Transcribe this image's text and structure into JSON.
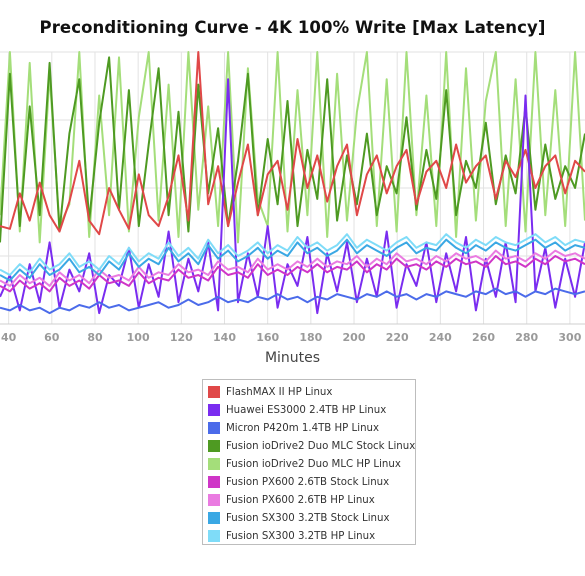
{
  "chart_data": {
    "type": "line",
    "title": "Preconditioning Curve - 4K 100% Write [Max Latency]",
    "xlabel": "Minutes",
    "ylabel": "",
    "xlim": [
      36,
      307
    ],
    "ylim": [
      0,
      1
    ],
    "x_ticks": [
      40,
      60,
      80,
      100,
      120,
      140,
      160,
      180,
      200,
      220,
      240,
      260,
      280,
      300
    ],
    "grid": true,
    "legend_position": "bottom",
    "series": [
      {
        "name": "FlashMAX II HP Linux",
        "color": "#e04848",
        "values": [
          0.36,
          0.35,
          0.48,
          0.38,
          0.52,
          0.4,
          0.34,
          0.45,
          0.6,
          0.38,
          0.33,
          0.5,
          0.42,
          0.35,
          0.55,
          0.4,
          0.36,
          0.47,
          0.62,
          0.38,
          1.0,
          0.44,
          0.58,
          0.36,
          0.52,
          0.66,
          0.4,
          0.55,
          0.6,
          0.42,
          0.68,
          0.5,
          0.62,
          0.45,
          0.58,
          0.66,
          0.4,
          0.55,
          0.62,
          0.48,
          0.58,
          0.64,
          0.44,
          0.56,
          0.6,
          0.5,
          0.66,
          0.52,
          0.58,
          0.62,
          0.46,
          0.6,
          0.54,
          0.64,
          0.5,
          0.58,
          0.62,
          0.48,
          0.6,
          0.56
        ]
      },
      {
        "name": "Huawei ES3000 2.4TB HP Linux",
        "color": "#7a2cf0",
        "values": [
          0.1,
          0.18,
          0.05,
          0.22,
          0.08,
          0.3,
          0.06,
          0.2,
          0.12,
          0.26,
          0.04,
          0.18,
          0.14,
          0.28,
          0.06,
          0.22,
          0.1,
          0.34,
          0.08,
          0.24,
          0.12,
          0.3,
          0.05,
          0.9,
          0.08,
          0.26,
          0.1,
          0.36,
          0.06,
          0.22,
          0.14,
          0.32,
          0.04,
          0.26,
          0.12,
          0.3,
          0.08,
          0.24,
          0.1,
          0.34,
          0.06,
          0.22,
          0.14,
          0.3,
          0.08,
          0.26,
          0.12,
          0.32,
          0.05,
          0.24,
          0.1,
          0.3,
          0.08,
          0.84,
          0.12,
          0.28,
          0.06,
          0.24,
          0.1,
          0.3
        ]
      },
      {
        "name": "Micron P420m 1.4TB HP Linux",
        "color": "#4b6bea",
        "values": [
          0.06,
          0.05,
          0.07,
          0.05,
          0.06,
          0.04,
          0.06,
          0.05,
          0.07,
          0.06,
          0.08,
          0.06,
          0.07,
          0.05,
          0.06,
          0.07,
          0.08,
          0.06,
          0.07,
          0.09,
          0.07,
          0.08,
          0.1,
          0.08,
          0.09,
          0.08,
          0.1,
          0.09,
          0.11,
          0.09,
          0.1,
          0.08,
          0.1,
          0.09,
          0.11,
          0.1,
          0.09,
          0.11,
          0.1,
          0.12,
          0.1,
          0.11,
          0.09,
          0.11,
          0.1,
          0.12,
          0.11,
          0.1,
          0.12,
          0.11,
          0.13,
          0.11,
          0.12,
          0.1,
          0.12,
          0.11,
          0.13,
          0.12,
          0.11,
          0.12
        ]
      },
      {
        "name": "Fusion ioDrive2 Duo MLC Stock Linux",
        "color": "#4e9a22",
        "values": [
          0.3,
          0.92,
          0.36,
          0.8,
          0.4,
          0.96,
          0.34,
          0.7,
          0.9,
          0.38,
          0.74,
          0.98,
          0.42,
          0.86,
          0.36,
          0.66,
          0.94,
          0.4,
          0.78,
          0.34,
          0.88,
          0.48,
          0.72,
          0.36,
          0.6,
          0.92,
          0.4,
          0.68,
          0.44,
          0.82,
          0.36,
          0.64,
          0.46,
          0.9,
          0.38,
          0.62,
          0.44,
          0.7,
          0.4,
          0.58,
          0.48,
          0.76,
          0.42,
          0.64,
          0.46,
          0.86,
          0.4,
          0.6,
          0.5,
          0.74,
          0.44,
          0.62,
          0.48,
          0.8,
          0.42,
          0.66,
          0.46,
          0.58,
          0.5,
          0.7
        ]
      },
      {
        "name": "Fusion ioDrive2 Duo MLC HP Linux",
        "color": "#a4de7a",
        "values": [
          0.4,
          1.0,
          0.34,
          0.96,
          0.3,
          0.92,
          0.36,
          0.44,
          1.0,
          0.32,
          0.84,
          0.4,
          0.98,
          0.34,
          0.76,
          1.0,
          0.38,
          0.88,
          0.32,
          1.0,
          0.42,
          0.8,
          0.36,
          1.0,
          0.3,
          0.94,
          0.46,
          0.36,
          1.0,
          0.34,
          0.86,
          0.4,
          1.0,
          0.32,
          0.92,
          0.38,
          0.78,
          1.0,
          0.36,
          0.9,
          0.34,
          1.0,
          0.4,
          0.84,
          0.36,
          1.0,
          0.32,
          0.94,
          0.38,
          0.82,
          1.0,
          0.36,
          0.9,
          0.34,
          1.0,
          0.4,
          0.86,
          0.36,
          1.0,
          0.38
        ]
      },
      {
        "name": "Fusion PX600 2.6TB Stock Linux",
        "color": "#cf35c7",
        "values": [
          0.14,
          0.12,
          0.16,
          0.13,
          0.15,
          0.12,
          0.17,
          0.14,
          0.16,
          0.13,
          0.18,
          0.15,
          0.16,
          0.14,
          0.19,
          0.15,
          0.17,
          0.16,
          0.2,
          0.17,
          0.18,
          0.16,
          0.21,
          0.18,
          0.19,
          0.17,
          0.22,
          0.18,
          0.2,
          0.18,
          0.21,
          0.19,
          0.22,
          0.19,
          0.21,
          0.2,
          0.23,
          0.19,
          0.22,
          0.2,
          0.24,
          0.21,
          0.22,
          0.2,
          0.23,
          0.21,
          0.24,
          0.22,
          0.23,
          0.21,
          0.25,
          0.22,
          0.23,
          0.21,
          0.24,
          0.22,
          0.25,
          0.23,
          0.24,
          0.22
        ]
      },
      {
        "name": "Fusion PX600 2.6TB HP Linux",
        "color": "#ea7be1",
        "values": [
          0.16,
          0.14,
          0.18,
          0.15,
          0.17,
          0.14,
          0.19,
          0.16,
          0.18,
          0.15,
          0.2,
          0.17,
          0.18,
          0.16,
          0.21,
          0.17,
          0.19,
          0.18,
          0.22,
          0.19,
          0.2,
          0.18,
          0.23,
          0.2,
          0.21,
          0.19,
          0.24,
          0.2,
          0.22,
          0.2,
          0.23,
          0.21,
          0.24,
          0.21,
          0.23,
          0.22,
          0.25,
          0.21,
          0.24,
          0.22,
          0.26,
          0.23,
          0.24,
          0.22,
          0.25,
          0.23,
          0.26,
          0.24,
          0.25,
          0.23,
          0.27,
          0.24,
          0.25,
          0.23,
          0.26,
          0.24,
          0.27,
          0.25,
          0.26,
          0.24
        ]
      },
      {
        "name": "Fusion SX300 3.2TB Stock Linux",
        "color": "#3aa8e4",
        "values": [
          0.18,
          0.16,
          0.2,
          0.17,
          0.22,
          0.18,
          0.2,
          0.24,
          0.19,
          0.21,
          0.18,
          0.23,
          0.2,
          0.26,
          0.21,
          0.24,
          0.22,
          0.28,
          0.23,
          0.26,
          0.22,
          0.29,
          0.24,
          0.27,
          0.23,
          0.25,
          0.28,
          0.24,
          0.27,
          0.25,
          0.3,
          0.26,
          0.28,
          0.25,
          0.27,
          0.31,
          0.26,
          0.29,
          0.27,
          0.25,
          0.28,
          0.3,
          0.26,
          0.28,
          0.27,
          0.31,
          0.28,
          0.26,
          0.29,
          0.27,
          0.3,
          0.28,
          0.27,
          0.29,
          0.31,
          0.28,
          0.3,
          0.27,
          0.29,
          0.28
        ]
      },
      {
        "name": "Fusion SX300 3.2TB HP Linux",
        "color": "#7fdcf8",
        "values": [
          0.2,
          0.18,
          0.22,
          0.19,
          0.24,
          0.2,
          0.22,
          0.26,
          0.21,
          0.23,
          0.2,
          0.25,
          0.22,
          0.28,
          0.23,
          0.26,
          0.24,
          0.3,
          0.25,
          0.28,
          0.24,
          0.31,
          0.26,
          0.29,
          0.25,
          0.27,
          0.3,
          0.26,
          0.29,
          0.27,
          0.32,
          0.28,
          0.3,
          0.27,
          0.29,
          0.33,
          0.28,
          0.31,
          0.29,
          0.27,
          0.3,
          0.32,
          0.28,
          0.3,
          0.29,
          0.33,
          0.3,
          0.28,
          0.31,
          0.29,
          0.32,
          0.3,
          0.29,
          0.31,
          0.33,
          0.3,
          0.32,
          0.29,
          0.31,
          0.3
        ]
      }
    ]
  }
}
